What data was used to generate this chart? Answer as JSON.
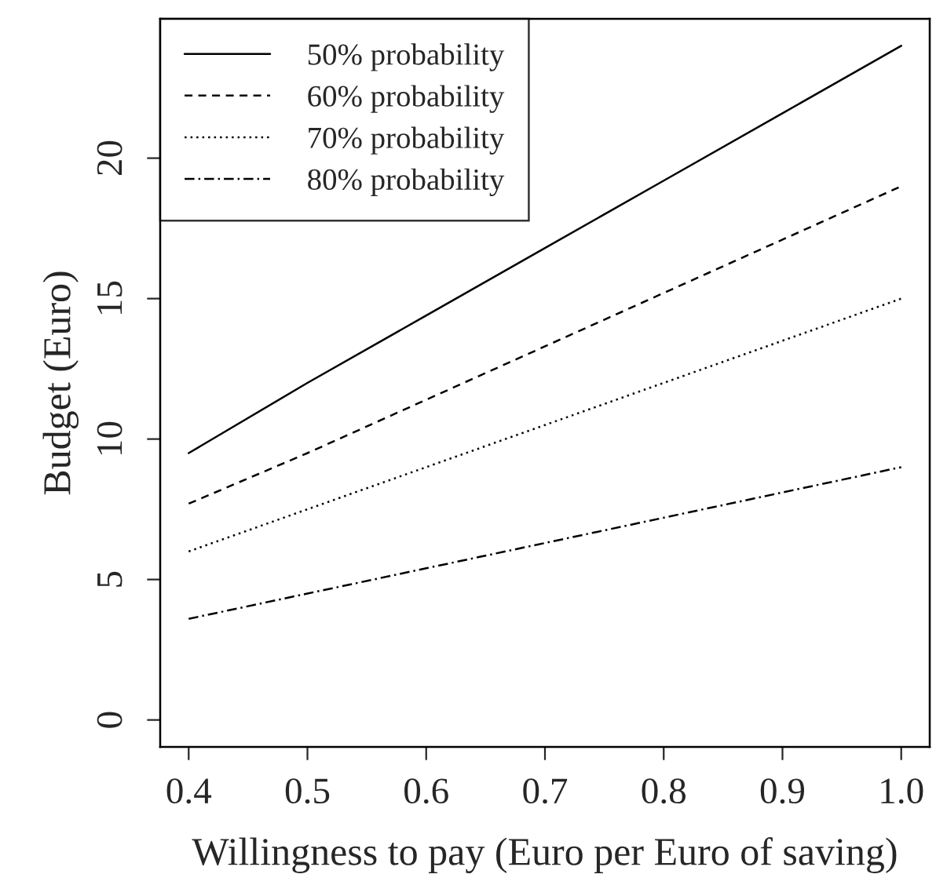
{
  "chart_data": {
    "type": "line",
    "xlabel": "Willingness to pay (Euro per Euro of saving)",
    "ylabel": "Budget (Euro)",
    "x": [
      0.4,
      0.5,
      0.6,
      0.7,
      0.8,
      0.9,
      1.0
    ],
    "series": [
      {
        "name": "50% probability",
        "color": "#000000",
        "line_style": "solid",
        "values": [
          9.5,
          12,
          14.4,
          16.8,
          19.2,
          21.6,
          24
        ]
      },
      {
        "name": "60% probability",
        "color": "#000000",
        "line_style": "dashed",
        "values": [
          7.7,
          9.5,
          11.4,
          13.3,
          15.2,
          17.1,
          19
        ]
      },
      {
        "name": "70% probability",
        "color": "#000000",
        "line_style": "dotted",
        "values": [
          6,
          7.5,
          9,
          10.5,
          12,
          13.5,
          15
        ]
      },
      {
        "name": "80% probability",
        "color": "#000000",
        "line_style": "dashdot",
        "values": [
          3.6,
          4.5,
          5.4,
          6.3,
          7.2,
          8.1,
          9
        ]
      }
    ],
    "xlim": [
      0.376,
      1.024
    ],
    "ylim": [
      -0.96,
      24.96
    ],
    "xticks": [
      {
        "value": 0.4,
        "label": "0.4"
      },
      {
        "value": 0.5,
        "label": "0.5"
      },
      {
        "value": 0.6,
        "label": "0.6"
      },
      {
        "value": 0.7,
        "label": "0.7"
      },
      {
        "value": 0.8,
        "label": "0.8"
      },
      {
        "value": 0.9,
        "label": "0.9"
      },
      {
        "value": 1.0,
        "label": "1.0"
      }
    ],
    "yticks": [
      0,
      5,
      10,
      15,
      20
    ],
    "grid": false,
    "legend": "top left",
    "marker": "none"
  }
}
